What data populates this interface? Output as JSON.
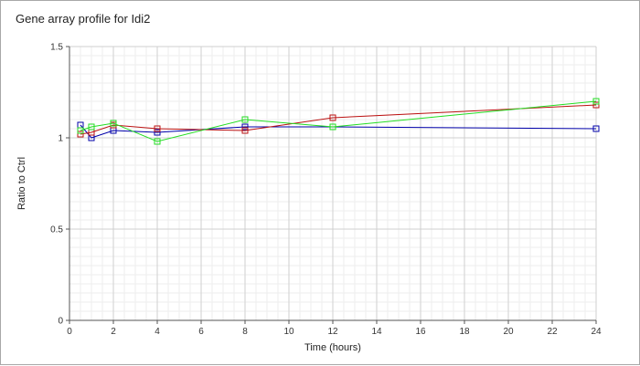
{
  "chart_data": {
    "type": "line",
    "title": "Gene array profile for Idi2",
    "xlabel": "Time (hours)",
    "ylabel": "Ratio to Ctrl",
    "xlim": [
      0,
      24
    ],
    "ylim": [
      0,
      1.5
    ],
    "x_ticks": [
      0,
      2,
      4,
      6,
      8,
      10,
      12,
      14,
      16,
      18,
      20,
      22,
      24
    ],
    "y_ticks": [
      {
        "value": 0,
        "label": "0"
      },
      {
        "value": 0.5,
        "label": "0.5"
      },
      {
        "value": 1,
        "label": "1"
      },
      {
        "value": 1.5,
        "label": "1.5"
      }
    ],
    "grid": true,
    "legend": "none",
    "x": [
      0.5,
      1,
      2,
      4,
      8,
      12,
      24
    ],
    "series": [
      {
        "color": "#0000aa",
        "values": [
          1.07,
          1.0,
          1.04,
          1.03,
          1.06,
          1.06,
          1.05
        ]
      },
      {
        "color": "#bb1111",
        "values": [
          1.02,
          1.03,
          1.07,
          1.05,
          1.04,
          1.11,
          1.18
        ]
      },
      {
        "color": "#22dd22",
        "values": [
          1.04,
          1.06,
          1.08,
          0.98,
          1.1,
          1.06,
          1.2
        ]
      }
    ]
  }
}
